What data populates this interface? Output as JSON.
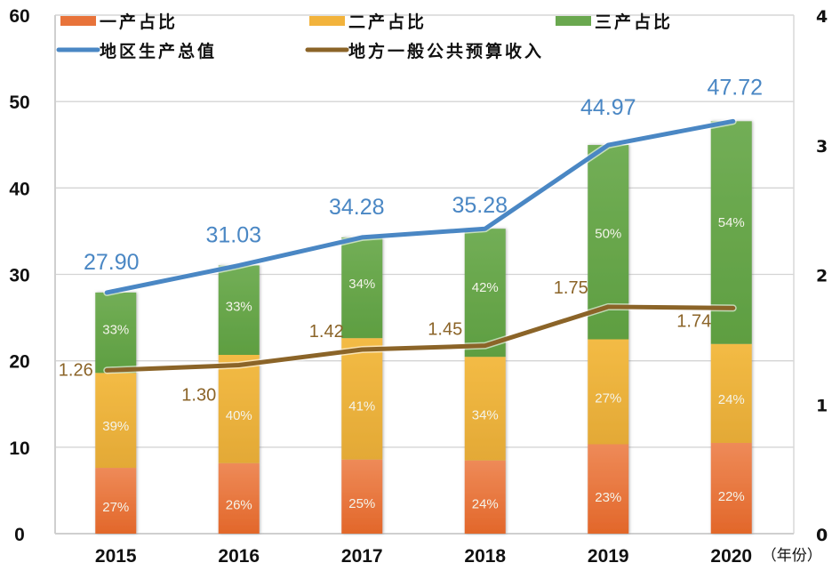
{
  "chart_data": {
    "type": "bar",
    "subtype": "stacked-bar-with-dual-axis-lines",
    "title": "",
    "categories": [
      "2015",
      "2016",
      "2017",
      "2018",
      "2019",
      "2020"
    ],
    "xlabel_suffix": "（年份）",
    "left_axis": {
      "ylim": [
        0,
        60
      ],
      "ticks": [
        "0",
        "10",
        "20",
        "30",
        "40",
        "50",
        "60"
      ]
    },
    "right_axis": {
      "ylim": [
        0,
        4
      ],
      "ticks": [
        "0",
        "1",
        "2",
        "3",
        "4"
      ]
    },
    "grid": true,
    "legend_position": "top",
    "colors": {
      "primary": "#e8733a",
      "secondary": "#f2b33c",
      "tertiary": "#6aa84f",
      "gdp": "#4a87c4",
      "budget": "#8b6428"
    },
    "stacked_series": [
      {
        "name": "一产占比",
        "key": "primary",
        "share_pct": [
          27,
          26,
          25,
          24,
          23,
          22
        ],
        "labels": [
          "27%",
          "26%",
          "25%",
          "24%",
          "23%",
          "22%"
        ]
      },
      {
        "name": "二产占比",
        "key": "secondary",
        "share_pct": [
          39,
          40,
          41,
          34,
          27,
          24
        ],
        "labels": [
          "39%",
          "40%",
          "41%",
          "34%",
          "27%",
          "24%"
        ]
      },
      {
        "name": "三产占比",
        "key": "tertiary",
        "share_pct": [
          33,
          33,
          34,
          42,
          50,
          54
        ],
        "labels": [
          "33%",
          "33%",
          "34%",
          "42%",
          "50%",
          "54%"
        ]
      }
    ],
    "line_series": [
      {
        "name": "地区生产总值",
        "key": "gdp",
        "axis": "left",
        "values": [
          27.9,
          31.03,
          34.28,
          35.28,
          44.97,
          47.72
        ],
        "labels": [
          "27.90",
          "31.03",
          "34.28",
          "35.28",
          "44.97",
          "47.72"
        ]
      },
      {
        "name": "地方一般公共预算收入",
        "key": "budget",
        "axis": "right",
        "values": [
          1.26,
          1.3,
          1.42,
          1.45,
          1.75,
          1.74
        ],
        "labels": [
          "1.26",
          "1.30",
          "1.42",
          "1.45",
          "1.75",
          "1.74"
        ]
      }
    ],
    "legend": [
      {
        "label": "一产占比",
        "key": "primary",
        "kind": "box"
      },
      {
        "label": "二产占比",
        "key": "secondary",
        "kind": "box"
      },
      {
        "label": "三产占比",
        "key": "tertiary",
        "kind": "box"
      },
      {
        "label": "地区生产总值",
        "key": "gdp",
        "kind": "line"
      },
      {
        "label": "地方一般公共预算收入",
        "key": "budget",
        "kind": "line"
      }
    ]
  }
}
